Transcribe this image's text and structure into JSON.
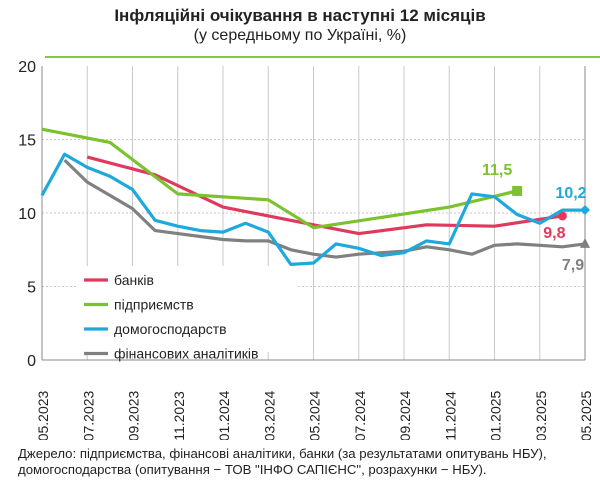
{
  "chart_data": {
    "type": "line",
    "title": "Інфляційні очікування в наступні 12 місяців",
    "subtitle": "(у середньому по Україні, %)",
    "ylim": [
      0,
      20
    ],
    "yticks": [
      "0",
      "5",
      "10",
      "15",
      "20"
    ],
    "xticks": [
      "05.2023",
      "07.2023",
      "09.2023",
      "11.2023",
      "01.2024",
      "03.2024",
      "05.2024",
      "07.2024",
      "09.2024",
      "11.2024",
      "01.2025",
      "03.2025",
      "05.2025"
    ],
    "x_months": [
      "05.2023",
      "06.2023",
      "07.2023",
      "08.2023",
      "09.2023",
      "10.2023",
      "11.2023",
      "12.2023",
      "01.2024",
      "02.2024",
      "03.2024",
      "04.2024",
      "05.2024",
      "06.2024",
      "07.2024",
      "08.2024",
      "09.2024",
      "10.2024",
      "11.2024",
      "12.2024",
      "01.2025",
      "02.2025",
      "03.2025",
      "04.2025",
      "05.2025"
    ],
    "grid": true,
    "legend_position": "bottom-left",
    "series": [
      {
        "name": "банків",
        "color": "#e0395e",
        "end_label": "9,8",
        "marker": "circle",
        "values": [
          null,
          null,
          13.8,
          null,
          null,
          12.6,
          null,
          null,
          10.4,
          null,
          null,
          null,
          9.2,
          null,
          8.6,
          null,
          null,
          9.2,
          null,
          null,
          9.1,
          null,
          null,
          9.8,
          null
        ]
      },
      {
        "name": "підприємств",
        "color": "#7cc22e",
        "end_label": "11,5",
        "marker": "square",
        "values": [
          15.7,
          null,
          null,
          14.8,
          null,
          null,
          11.3,
          null,
          null,
          11.0,
          10.9,
          null,
          9.0,
          null,
          null,
          null,
          null,
          null,
          10.4,
          null,
          null,
          11.5,
          null,
          null,
          null
        ]
      },
      {
        "name": "домогосподарств",
        "color": "#1ea9dc",
        "end_label": "10,2",
        "marker": "diamond",
        "values": [
          11.2,
          14.0,
          13.1,
          12.5,
          11.6,
          9.5,
          9.1,
          8.8,
          8.7,
          9.3,
          8.7,
          6.5,
          6.6,
          7.9,
          7.6,
          7.1,
          7.3,
          8.1,
          7.9,
          11.3,
          11.1,
          9.9,
          9.3,
          10.2,
          10.2
        ]
      },
      {
        "name": "фінансових аналітиків",
        "color": "#808080",
        "end_label": "7,9",
        "marker": "triangle",
        "values": [
          null,
          13.6,
          12.1,
          11.2,
          10.3,
          8.8,
          8.6,
          8.4,
          8.2,
          8.1,
          8.1,
          7.5,
          7.2,
          7.0,
          7.2,
          7.3,
          7.4,
          7.7,
          7.5,
          7.2,
          7.8,
          7.9,
          7.8,
          7.7,
          7.9
        ]
      }
    ]
  },
  "source": {
    "line1": "Джерело: підприємства, фінансові аналітики, банки (за результатами опитувань НБУ),",
    "line2": "домогосподарства (опитування − ТОВ \"ІНФО САПІЄНС\", розрахунки − НБУ)."
  }
}
